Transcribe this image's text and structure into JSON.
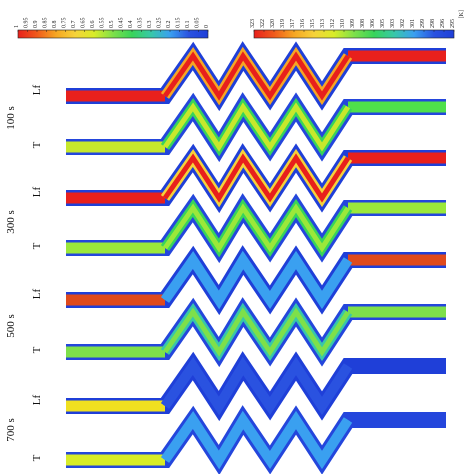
{
  "colorbars": {
    "lf": {
      "ticks": [
        "1",
        "0.95",
        "0.9",
        "0.85",
        "0.8",
        "0.75",
        "0.7",
        "0.65",
        "0.6",
        "0.55",
        "0.5",
        "0.45",
        "0.4",
        "0.35",
        "0.3",
        "0.25",
        "0.2",
        "0.15",
        "0.1",
        "0.05",
        "0"
      ]
    },
    "temperature": {
      "ticks": [
        "323",
        "322",
        "320",
        "319",
        "317",
        "316",
        "315",
        "313",
        "312",
        "310",
        "309",
        "308",
        "306",
        "305",
        "303",
        "302",
        "301",
        "299",
        "298",
        "296",
        "295"
      ],
      "unit": "[K]"
    }
  },
  "rows": [
    {
      "field": "Lf",
      "time": "100 s",
      "core": "#e8201c",
      "wall": "#1f3fd8",
      "channel": "#2a52e0",
      "zig_core": "#e8201c",
      "zig_mid": "#f6a623",
      "mode": "lf-full"
    },
    {
      "field": "T",
      "time": "100 s",
      "core": "#4fe04a",
      "wall": "#2446dc",
      "channel": "#48d2c8",
      "zig_core": "#c7e82c",
      "zig_mid": "#38d45a",
      "mode": "t-hot"
    },
    {
      "field": "Lf",
      "time": "300 s",
      "core": "#e8201c",
      "wall": "#1f3fd8",
      "channel": "#2a52e0",
      "zig_core": "#e8201c",
      "zig_mid": "#f6d23a",
      "mode": "lf-thin"
    },
    {
      "field": "T",
      "time": "300 s",
      "core": "#9be83a",
      "wall": "#2446dc",
      "channel": "#48d2c8",
      "zig_core": "#9be83a",
      "zig_mid": "#38d45a",
      "mode": "t-mid"
    },
    {
      "field": "Lf",
      "time": "500 s",
      "core": "#e04a1c",
      "wall": "#1f3fd8",
      "channel": "#2a52e0",
      "zig_core": "#3aa0f0",
      "zig_mid": "#3aa0f0",
      "mode": "lf-low"
    },
    {
      "field": "T",
      "time": "500 s",
      "core": "#7ee04a",
      "wall": "#2446dc",
      "channel": "#48d2c8",
      "zig_core": "#7ee04a",
      "zig_mid": "#38c8a8",
      "mode": "t-low"
    },
    {
      "field": "Lf",
      "time": "700 s",
      "core": "#f0e020",
      "wall": "#1f3fd8",
      "channel": "#2a52e0",
      "zig_core": "#2a52e0",
      "zig_mid": "#2a52e0",
      "mode": "lf-end"
    },
    {
      "field": "T",
      "time": "700 s",
      "core": "#d8ec28",
      "wall": "#2446dc",
      "channel": "#48d2c8",
      "zig_core": "#3aa0f0",
      "zig_mid": "#3aa0f0",
      "mode": "t-end"
    }
  ],
  "time_labels": [
    "100 s",
    "300 s",
    "500 s",
    "700 s"
  ],
  "colors": {
    "jet_stops": [
      "#e8201c",
      "#f05a1c",
      "#f6a623",
      "#f6d23a",
      "#d8ec28",
      "#7ee04a",
      "#38d45a",
      "#38c8a8",
      "#3aa0f0",
      "#2a52e0",
      "#1f3fd8"
    ]
  }
}
